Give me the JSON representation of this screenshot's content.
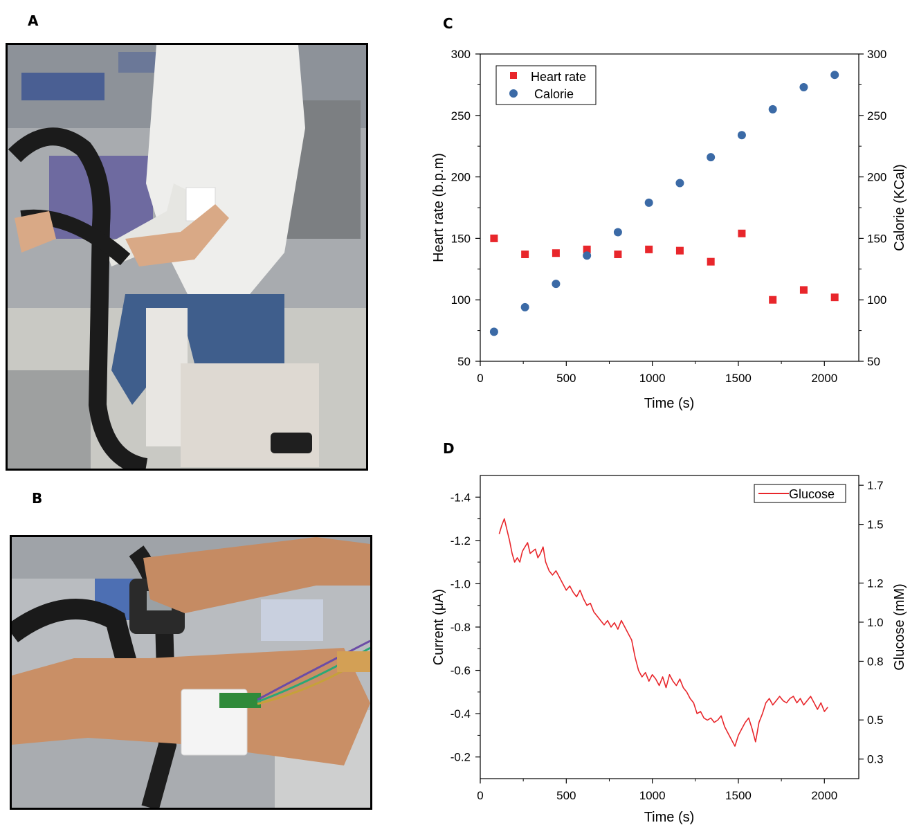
{
  "panels": {
    "a": "A",
    "b": "B",
    "c": "C",
    "d": "D"
  },
  "colors": {
    "heart_rate": "#e8262b",
    "calorie": "#3b6aa6",
    "glucose": "#e8262b"
  },
  "chart_data": [
    {
      "id": "C",
      "type": "scatter",
      "xlabel": "Time (s)",
      "ylabel": "Heart rate (b.p.m)",
      "y2label": "Calorie (KCal)",
      "xlim": [
        0,
        2200
      ],
      "ylim": [
        50,
        300
      ],
      "y2lim": [
        50,
        300
      ],
      "xticks": [
        "0",
        "500",
        "1000",
        "1500",
        "2000"
      ],
      "yticks": [
        "50",
        "100",
        "150",
        "200",
        "250",
        "300"
      ],
      "y2ticks": [
        "50",
        "100",
        "150",
        "200",
        "250",
        "300"
      ],
      "legend_position": "top-left",
      "series": [
        {
          "name": "Heart rate",
          "marker": "square",
          "axis": "left",
          "x": [
            80,
            260,
            440,
            620,
            800,
            980,
            1160,
            1340,
            1520,
            1700,
            1880,
            2060
          ],
          "y": [
            150,
            137,
            138,
            141,
            137,
            141,
            140,
            131,
            154,
            100,
            108,
            102
          ]
        },
        {
          "name": "Calorie",
          "marker": "circle",
          "axis": "right",
          "x": [
            80,
            260,
            440,
            620,
            800,
            980,
            1160,
            1340,
            1520,
            1700,
            1880,
            2060
          ],
          "y": [
            74,
            94,
            113,
            136,
            155,
            179,
            195,
            216,
            234,
            255,
            273,
            283
          ]
        }
      ]
    },
    {
      "id": "D",
      "type": "line",
      "xlabel": "Time (s)",
      "ylabel": "Current (μA)",
      "y2label": "Glucose (mM)",
      "xlim": [
        0,
        2200
      ],
      "ylim": [
        -0.1,
        -1.5
      ],
      "y2lim": [
        0.2,
        1.75
      ],
      "xticks": [
        "0",
        "500",
        "1000",
        "1500",
        "2000"
      ],
      "yticks": [
        "-0.2",
        "-0.4",
        "-0.6",
        "-0.8",
        "-1.0",
        "-1.2",
        "-1.4"
      ],
      "y2ticks": [
        "0.3",
        "0.5",
        "0.8",
        "1.0",
        "1.2",
        "1.5",
        "1.7"
      ],
      "legend_position": "top-right",
      "series": [
        {
          "name": "Glucose",
          "x": [
            110,
            125,
            140,
            155,
            170,
            185,
            200,
            215,
            230,
            245,
            260,
            275,
            290,
            305,
            320,
            335,
            350,
            365,
            380,
            400,
            420,
            440,
            460,
            480,
            500,
            520,
            540,
            560,
            580,
            600,
            620,
            640,
            660,
            680,
            700,
            720,
            740,
            760,
            780,
            800,
            820,
            840,
            860,
            880,
            900,
            920,
            940,
            960,
            980,
            1000,
            1020,
            1040,
            1060,
            1080,
            1100,
            1120,
            1140,
            1160,
            1180,
            1200,
            1220,
            1240,
            1260,
            1280,
            1300,
            1320,
            1340,
            1360,
            1380,
            1400,
            1420,
            1440,
            1460,
            1480,
            1500,
            1520,
            1540,
            1560,
            1580,
            1600,
            1620,
            1640,
            1660,
            1680,
            1700,
            1720,
            1740,
            1760,
            1780,
            1800,
            1820,
            1840,
            1860,
            1880,
            1900,
            1920,
            1940,
            1960,
            1980,
            2000,
            2020
          ],
          "y": [
            -1.23,
            -1.27,
            -1.3,
            -1.25,
            -1.2,
            -1.14,
            -1.1,
            -1.12,
            -1.1,
            -1.15,
            -1.17,
            -1.19,
            -1.14,
            -1.15,
            -1.16,
            -1.12,
            -1.14,
            -1.17,
            -1.1,
            -1.06,
            -1.04,
            -1.06,
            -1.03,
            -1.0,
            -0.97,
            -0.99,
            -0.96,
            -0.94,
            -0.97,
            -0.93,
            -0.9,
            -0.91,
            -0.87,
            -0.85,
            -0.83,
            -0.81,
            -0.83,
            -0.8,
            -0.82,
            -0.79,
            -0.83,
            -0.8,
            -0.77,
            -0.74,
            -0.66,
            -0.6,
            -0.57,
            -0.59,
            -0.55,
            -0.58,
            -0.56,
            -0.53,
            -0.57,
            -0.52,
            -0.58,
            -0.55,
            -0.53,
            -0.56,
            -0.52,
            -0.5,
            -0.47,
            -0.45,
            -0.4,
            -0.41,
            -0.38,
            -0.37,
            -0.38,
            -0.36,
            -0.37,
            -0.39,
            -0.34,
            -0.31,
            -0.28,
            -0.25,
            -0.3,
            -0.33,
            -0.36,
            -0.38,
            -0.33,
            -0.27,
            -0.36,
            -0.4,
            -0.45,
            -0.47,
            -0.44,
            -0.46,
            -0.48,
            -0.46,
            -0.45,
            -0.47,
            -0.48,
            -0.45,
            -0.47,
            -0.44,
            -0.46,
            -0.48,
            -0.45,
            -0.42,
            -0.45,
            -0.41,
            -0.43
          ]
        }
      ]
    }
  ]
}
